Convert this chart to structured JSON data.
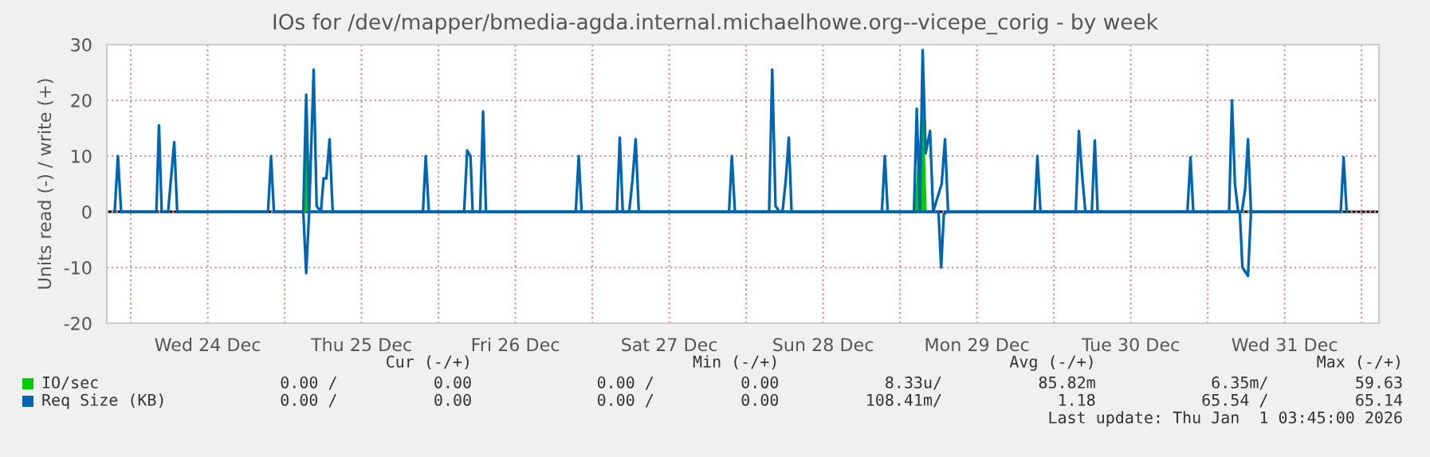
{
  "chart_data": {
    "type": "line",
    "title": "IOs for /dev/mapper/bmedia-agda.internal.michaelhowe.org--vicepe_corig - by week",
    "ylabel": "Units read (-) / write (+)",
    "xlim": [
      "2025-12-23T20:16",
      "2026-01-01T02:43"
    ],
    "xticks": [
      {
        "value": "2025-12-24T00:00",
        "label": null
      },
      {
        "value": "2025-12-24T12:00",
        "label": "Wed 24 Dec"
      },
      {
        "value": "2025-12-25T00:00",
        "label": null
      },
      {
        "value": "2025-12-25T12:00",
        "label": "Thu 25 Dec"
      },
      {
        "value": "2025-12-26T00:00",
        "label": null
      },
      {
        "value": "2025-12-26T12:00",
        "label": "Fri 26 Dec"
      },
      {
        "value": "2025-12-27T00:00",
        "label": null
      },
      {
        "value": "2025-12-27T12:00",
        "label": "Sat 27 Dec"
      },
      {
        "value": "2025-12-28T00:00",
        "label": null
      },
      {
        "value": "2025-12-28T12:00",
        "label": "Sun 28 Dec"
      },
      {
        "value": "2025-12-29T00:00",
        "label": null
      },
      {
        "value": "2025-12-29T12:00",
        "label": "Mon 29 Dec"
      },
      {
        "value": "2025-12-30T00:00",
        "label": null
      },
      {
        "value": "2025-12-30T12:00",
        "label": "Tue 30 Dec"
      },
      {
        "value": "2025-12-31T00:00",
        "label": null
      },
      {
        "value": "2025-12-31T12:00",
        "label": "Wed 31 Dec"
      },
      {
        "value": "2026-01-01T00:00",
        "label": null
      }
    ],
    "ylim": [
      -20,
      30
    ],
    "yticks": [
      -20,
      -10,
      0,
      10,
      20,
      30
    ],
    "grid": true,
    "legend": "bottom",
    "ref_lines": [
      {
        "axis": "y",
        "value": 0,
        "color": "#000000"
      }
    ],
    "series": [
      {
        "name": "IO/sec",
        "type": "area",
        "color": "#00cc00",
        "x": [
          "2025-12-25T03:00",
          "2025-12-25T03:22",
          "2025-12-25T03:45",
          "2025-12-29T02:15",
          "2025-12-29T02:37",
          "2025-12-29T03:32",
          "2025-12-29T04:00"
        ],
        "values": [
          0,
          11.5,
          0,
          0,
          4,
          18,
          0
        ]
      },
      {
        "name": "Req Size (KB)",
        "color": "#0066b3",
        "x": [
          "2025-12-23T21:30",
          "2025-12-23T22:00",
          "2025-12-23T22:30",
          "2025-12-24T04:00",
          "2025-12-24T04:24",
          "2025-12-24T04:50",
          "2025-12-24T05:50",
          "2025-12-24T06:17",
          "2025-12-24T06:47",
          "2025-12-24T07:15",
          "2025-12-24T21:25",
          "2025-12-24T21:53",
          "2025-12-24T22:20",
          "2025-12-25T02:55",
          "2025-12-25T03:22",
          "2025-12-25T03:50",
          "2025-12-25T04:32",
          "2025-12-25T05:00",
          "2025-12-25T05:40",
          "2025-12-25T06:05",
          "2025-12-25T06:31",
          "2025-12-25T07:01",
          "2025-12-25T07:30",
          "2025-12-25T21:35",
          "2025-12-25T22:01",
          "2025-12-25T22:30",
          "2025-12-26T04:00",
          "2025-12-26T04:29",
          "2025-12-26T05:00",
          "2025-12-26T05:20",
          "2025-12-26T06:30",
          "2025-12-26T06:58",
          "2025-12-26T07:25",
          "2025-12-26T21:25",
          "2025-12-26T21:53",
          "2025-12-26T22:20",
          "2025-12-27T03:50",
          "2025-12-27T04:17",
          "2025-12-27T04:45",
          "2025-12-27T05:45",
          "2025-12-27T06:15",
          "2025-12-27T06:46",
          "2025-12-27T07:15",
          "2025-12-27T21:20",
          "2025-12-27T21:46",
          "2025-12-27T22:15",
          "2025-12-28T03:35",
          "2025-12-28T04:04",
          "2025-12-28T04:35",
          "2025-12-28T05:15",
          "2025-12-28T05:40",
          "2025-12-28T06:10",
          "2025-12-28T06:39",
          "2025-12-28T07:05",
          "2025-12-28T21:10",
          "2025-12-28T21:38",
          "2025-12-28T22:05",
          "2025-12-29T02:10",
          "2025-12-29T02:37",
          "2025-12-29T03:05",
          "2025-12-29T03:32",
          "2025-12-29T04:00",
          "2025-12-29T04:41",
          "2025-12-29T05:10",
          "2025-12-29T06:30",
          "2025-12-29T07:01",
          "2025-12-29T07:30",
          "2025-12-29T21:00",
          "2025-12-29T21:26",
          "2025-12-29T21:55",
          "2025-12-30T03:25",
          "2025-12-30T03:54",
          "2025-12-30T04:25",
          "2025-12-30T04:55",
          "2025-12-30T05:55",
          "2025-12-30T06:23",
          "2025-12-30T06:50",
          "2025-12-30T20:50",
          "2025-12-30T21:19",
          "2025-12-30T21:45",
          "2025-12-31T03:20",
          "2025-12-31T03:47",
          "2025-12-31T04:15",
          "2025-12-31T04:45",
          "2025-12-31T05:20",
          "2025-12-31T05:50",
          "2025-12-31T06:17",
          "2025-12-31T06:45",
          "2025-12-31T20:45",
          "2025-12-31T21:12",
          "2025-12-31T21:40"
        ],
        "values": [
          0,
          10,
          0,
          0,
          15.5,
          0,
          0,
          6,
          12.5,
          0,
          0,
          10,
          0,
          0,
          21,
          0,
          25.5,
          1,
          0,
          6,
          6,
          13,
          0,
          0,
          10,
          0,
          0,
          11,
          10,
          0,
          0,
          18,
          0,
          0,
          10,
          0,
          0,
          13.3,
          0,
          0,
          5.5,
          13,
          0,
          0,
          10,
          0,
          0,
          25.5,
          1,
          0,
          0,
          5.5,
          13.3,
          0,
          0,
          10,
          0,
          0,
          18.5,
          0,
          29,
          10.5,
          14.5,
          0,
          5,
          13,
          0,
          0,
          10,
          0,
          0,
          14.5,
          6.5,
          0,
          0,
          12.8,
          0,
          0,
          9.8,
          0,
          0,
          20,
          5,
          0,
          0,
          4,
          13,
          0,
          0,
          9.8,
          0
        ]
      },
      {
        "color": "#0066b3",
        "x": [
          "2025-12-25T02:55",
          "2025-12-25T03:22",
          "2025-12-25T03:50",
          "2025-12-29T06:00",
          "2025-12-29T06:25",
          "2025-12-29T06:50",
          "2025-12-29T07:15",
          "2025-12-31T05:00",
          "2025-12-31T05:25",
          "2025-12-31T06:17",
          "2025-12-31T06:45"
        ],
        "values": [
          0,
          -11,
          0,
          0,
          -10,
          -0.5,
          0,
          0,
          -10,
          -11.5,
          0
        ]
      }
    ],
    "annotations": [
      "Cur (-/+)                       Min (-/+)                        Avg (-/+)                       Max (-/+)",
      "0.00 /          0.00             0.00 /         0.00           8.33u/          85.82m            6.35m/         59.63",
      "0.00 /          0.00             0.00 /         0.00         108.41m/            1.18           65.54 /         65.14",
      "Last update: Thu Jan  1 03:45:00 2026"
    ]
  }
}
